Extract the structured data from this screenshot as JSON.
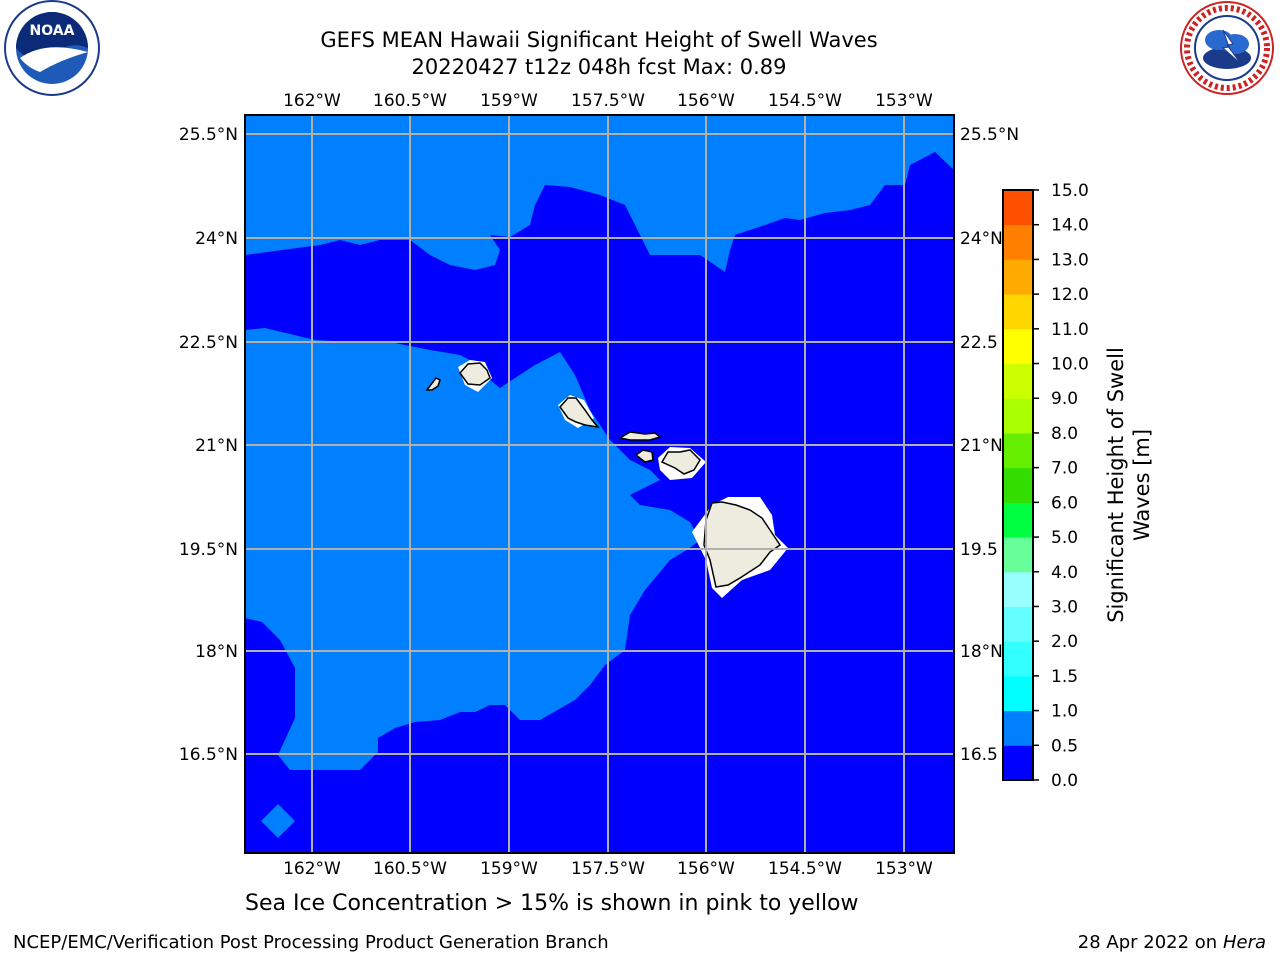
{
  "title": {
    "line1": "GEFS MEAN Hawaii Significant Height of Swell Waves",
    "line2": "20220427 t12z 048h fcst   Max: 0.89"
  },
  "logos": {
    "left": {
      "icon": "noaa-logo",
      "text": "NOAA",
      "ring_text": "NATIONAL OCEANIC AND ATMOSPHERIC ADMINISTRATION · U.S. DEPARTMENT OF COMMERCE"
    },
    "right": {
      "icon": "nws-logo",
      "ring_text": "NATIONAL WEATHER SERVICE"
    }
  },
  "map": {
    "longitude_ticks": [
      "162°W",
      "160.5°W",
      "159°W",
      "157.5°W",
      "156°W",
      "154.5°W",
      "153°W"
    ],
    "latitude_ticks": [
      "25.5°N",
      "24°N",
      "22.5°N",
      "21°N",
      "19.5°N",
      "18°N",
      "16.5°N"
    ],
    "latitude_ticks_right": [
      "25.5°N",
      "24°N",
      "22.5",
      "21°N",
      "19.5",
      "18°N",
      "16.5"
    ],
    "colors": {
      "ocean_low": "#0000ff",
      "ocean_mid": "#0080ff",
      "land": "#eeecde",
      "grid": "#b0b0b0"
    }
  },
  "colorbar": {
    "label_line1": "Significant Height of Swell",
    "label_line2": "Waves [m]",
    "ticks": [
      "0.0",
      "0.5",
      "1.0",
      "1.5",
      "2.0",
      "3.0",
      "4.0",
      "5.0",
      "6.0",
      "7.0",
      "8.0",
      "9.0",
      "10.0",
      "11.0",
      "12.0",
      "13.0",
      "14.0",
      "15.0"
    ],
    "colors": [
      "#0000ff",
      "#0080ff",
      "#00ffff",
      "#33ffff",
      "#66ffff",
      "#99ffff",
      "#66ff99",
      "#00ff40",
      "#33dd00",
      "#66ee00",
      "#aaff00",
      "#ccff00",
      "#ffff00",
      "#ffd700",
      "#ffaa00",
      "#ff8000",
      "#ff5000",
      "#ff1000",
      "#ff0000"
    ]
  },
  "subtitle": "Sea Ice Concentration > 15% is shown in pink to yellow",
  "footer": {
    "left": "NCEP/EMC/Verification Post Processing Product Generation Branch",
    "right_date": "28 Apr 2022 on ",
    "right_host": "Hera"
  }
}
